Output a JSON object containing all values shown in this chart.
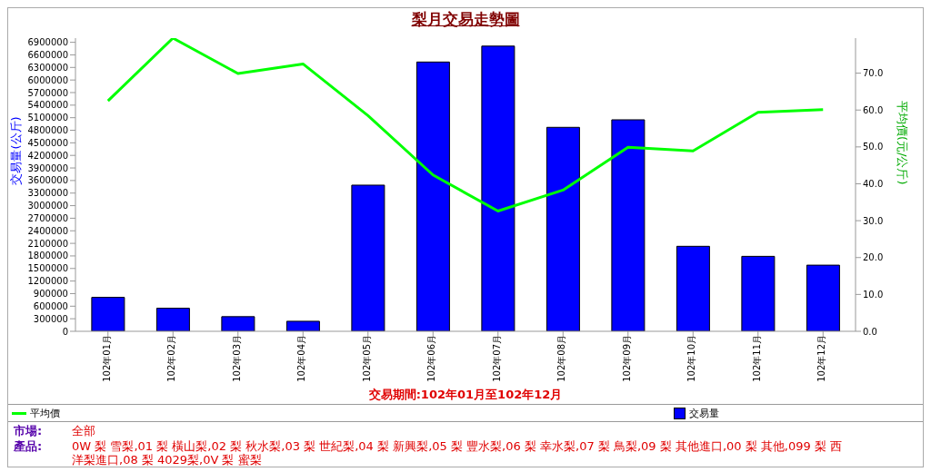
{
  "chart_data": {
    "type": "bar",
    "title": "梨月交易走勢圖",
    "xlabel": "交易期間:102年01月至102年12月",
    "ylabel": "交易量(公斤)",
    "y2label": "平均價(元/公斤)",
    "categories": [
      "102年01月",
      "102年02月",
      "102年03月",
      "102年04月",
      "102年05月",
      "102年06月",
      "102年07月",
      "102年08月",
      "102年09月",
      "102年10月",
      "102年11月",
      "102年12月"
    ],
    "series": [
      {
        "name": "平均價",
        "type": "line",
        "axis": "y2",
        "color": "#00ff00",
        "values": [
          62.5,
          79.5,
          69.9,
          72.5,
          58.5,
          42.4,
          32.6,
          38.3,
          49.9,
          48.9,
          59.4,
          60.1
        ]
      },
      {
        "name": "交易量",
        "color": "#0000ff",
        "values": [
          810000,
          550000,
          350000,
          240000,
          3490000,
          6430000,
          6810000,
          4870000,
          5050000,
          2030000,
          1790000,
          1580000
        ]
      }
    ],
    "ylim": [
      0,
      7000000
    ],
    "yticks": [
      0,
      300000,
      600000,
      900000,
      1200000,
      1500000,
      1800000,
      2100000,
      2400000,
      2700000,
      3000000,
      3300000,
      3600000,
      3900000,
      4200000,
      4500000,
      4800000,
      5100000,
      5400000,
      5700000,
      6000000,
      6300000,
      6600000,
      6900000
    ],
    "y2lim": [
      0,
      79.5
    ],
    "y2ticks": [
      {
        "value": 0,
        "label": "0.0"
      },
      {
        "value": 10,
        "label": "10.0"
      },
      {
        "value": 20,
        "label": "20.0"
      },
      {
        "value": 30,
        "label": "30.0"
      },
      {
        "value": 40,
        "label": "40.0"
      },
      {
        "value": 50,
        "label": "50.0"
      },
      {
        "value": 60,
        "label": "60.0"
      },
      {
        "value": 70,
        "label": "70.0"
      }
    ],
    "grid": false,
    "legend": "bottom",
    "marker": "none",
    "line_style": "solid",
    "annotations": [
      "市場:",
      "全部",
      "產品:",
      "0W 梨 雪梨,01 梨 橫山梨,02 梨 秋水梨,03 梨 世紀梨,04 梨 新興梨,05 梨 豐水梨,06 梨 幸水梨,07 梨 鳥梨,09 梨 其他進口,00 梨 其他,099 梨 西洋梨進口,08 梨 4029梨,0V 梨 蜜梨"
    ]
  }
}
